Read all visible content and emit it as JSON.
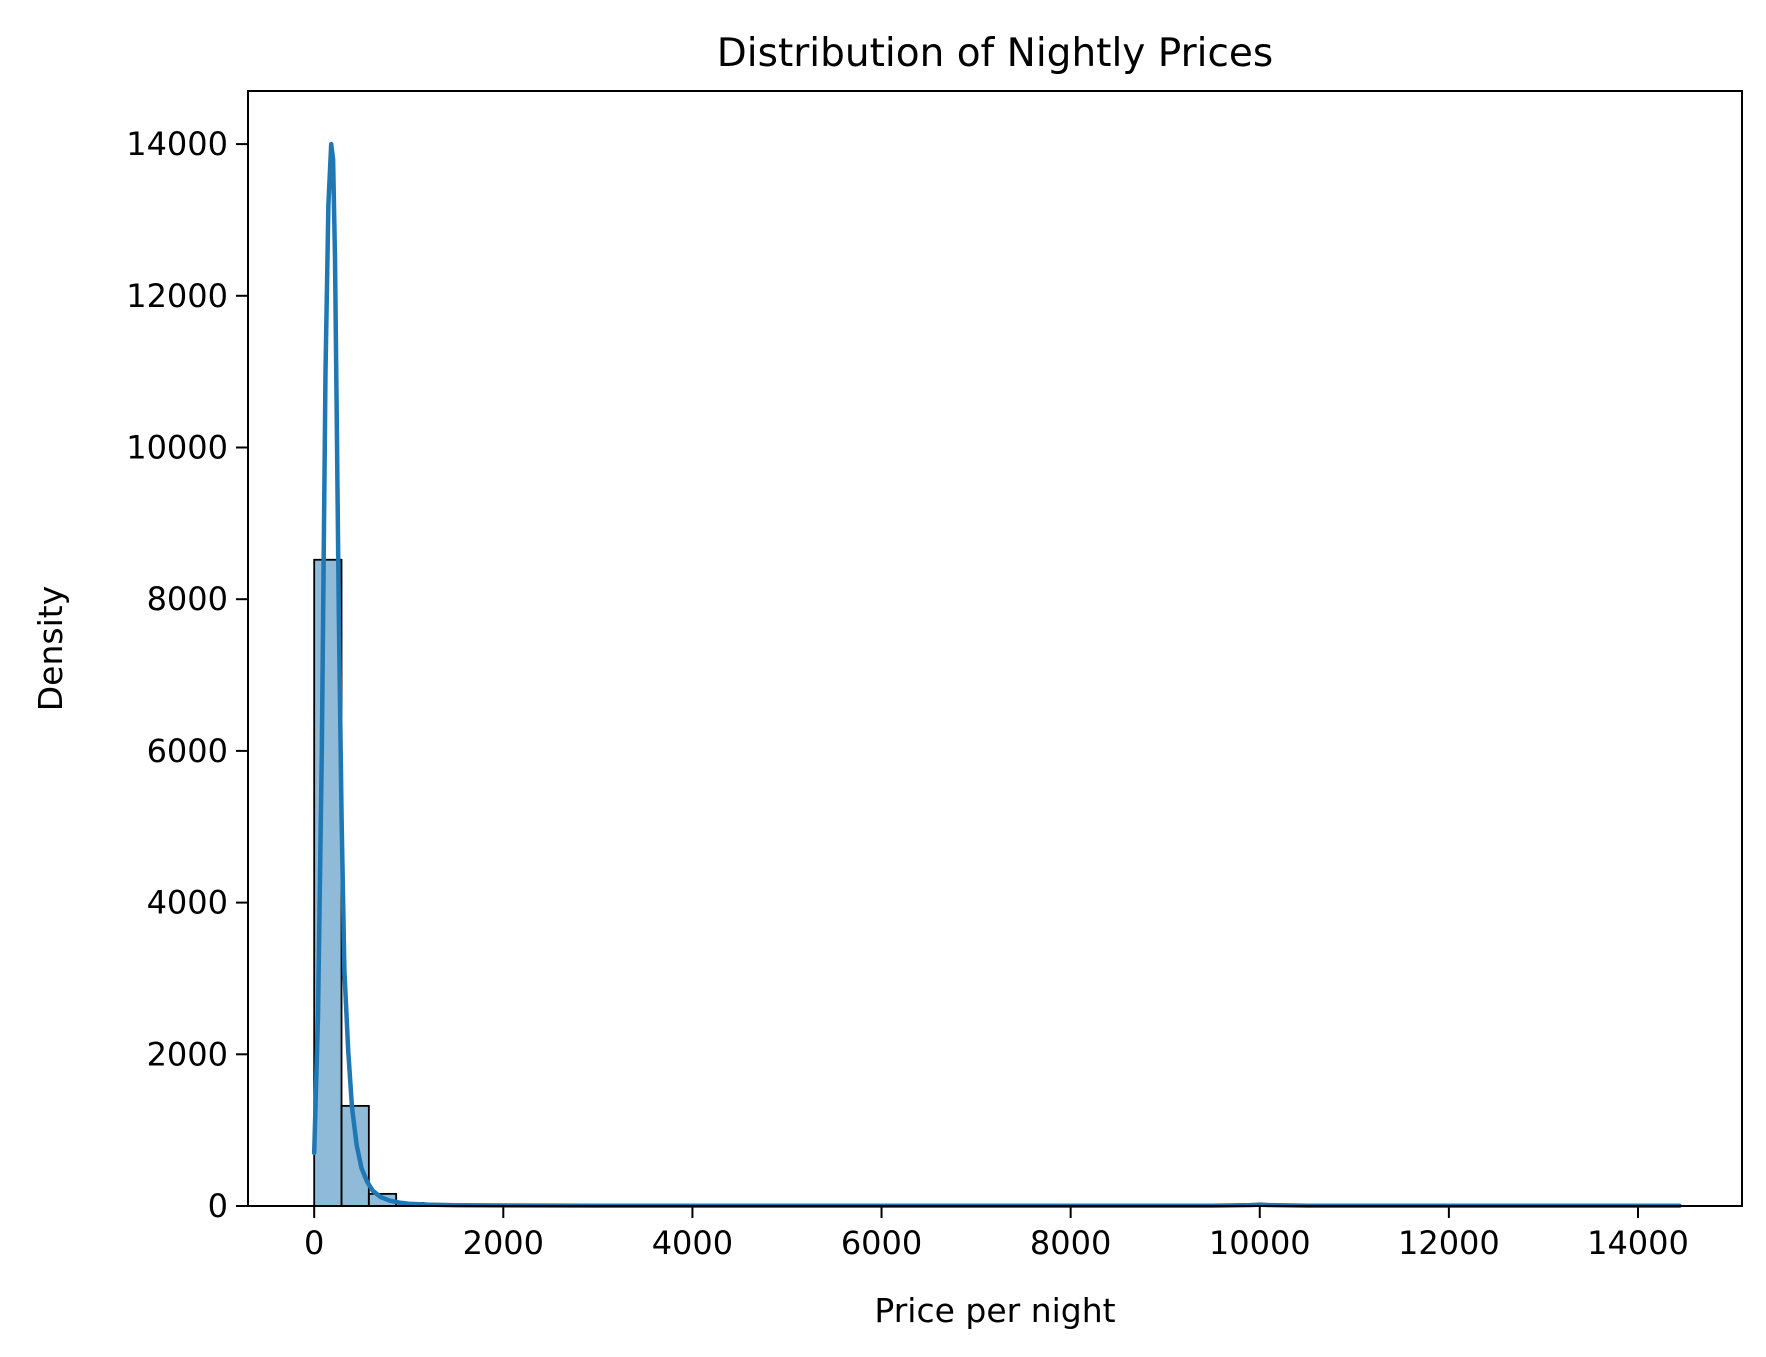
{
  "chart_data": {
    "type": "bar",
    "title": "Distribution of Nightly Prices",
    "xlabel": "Price per night",
    "ylabel": "Density",
    "xlim": [
      -700,
      15100
    ],
    "ylim": [
      0,
      14700
    ],
    "xticks": [
      0,
      2000,
      4000,
      6000,
      8000,
      10000,
      12000,
      14000
    ],
    "yticks": [
      0,
      2000,
      4000,
      6000,
      8000,
      10000,
      12000,
      14000
    ],
    "grid": false,
    "legend": "none",
    "bar_color": "#1f77b4",
    "bar_edge_color": "#000000",
    "bin_width": 289,
    "bins": [
      {
        "x0": 0,
        "x1": 289,
        "value": 8520
      },
      {
        "x0": 289,
        "x1": 578,
        "value": 1320
      },
      {
        "x0": 578,
        "x1": 867,
        "value": 160
      },
      {
        "x0": 867,
        "x1": 1156,
        "value": 40
      },
      {
        "x0": 1156,
        "x1": 1445,
        "value": 15
      },
      {
        "x0": 1445,
        "x1": 1734,
        "value": 8
      },
      {
        "x0": 1734,
        "x1": 2023,
        "value": 4
      },
      {
        "x0": 2023,
        "x1": 2312,
        "value": 3
      },
      {
        "x0": 2312,
        "x1": 2601,
        "value": 2
      },
      {
        "x0": 2601,
        "x1": 2890,
        "value": 2
      },
      {
        "x0": 9826,
        "x1": 10115,
        "value": 6
      }
    ],
    "kde": {
      "color": "#1f77b4",
      "x": [
        0,
        40,
        80,
        120,
        150,
        180,
        200,
        220,
        240,
        260,
        290,
        320,
        360,
        400,
        450,
        500,
        560,
        620,
        700,
        800,
        900,
        1000,
        1200,
        1500,
        2000,
        3000,
        5000,
        8000,
        9500,
        9900,
        10000,
        10100,
        10500,
        12000,
        14440
      ],
      "y": [
        700,
        2500,
        6000,
        11000,
        13200,
        14000,
        13800,
        12500,
        10200,
        7800,
        5100,
        3100,
        2050,
        1300,
        800,
        500,
        320,
        200,
        120,
        70,
        45,
        30,
        18,
        10,
        6,
        4,
        3,
        3,
        4,
        12,
        18,
        12,
        4,
        3,
        3
      ]
    }
  }
}
